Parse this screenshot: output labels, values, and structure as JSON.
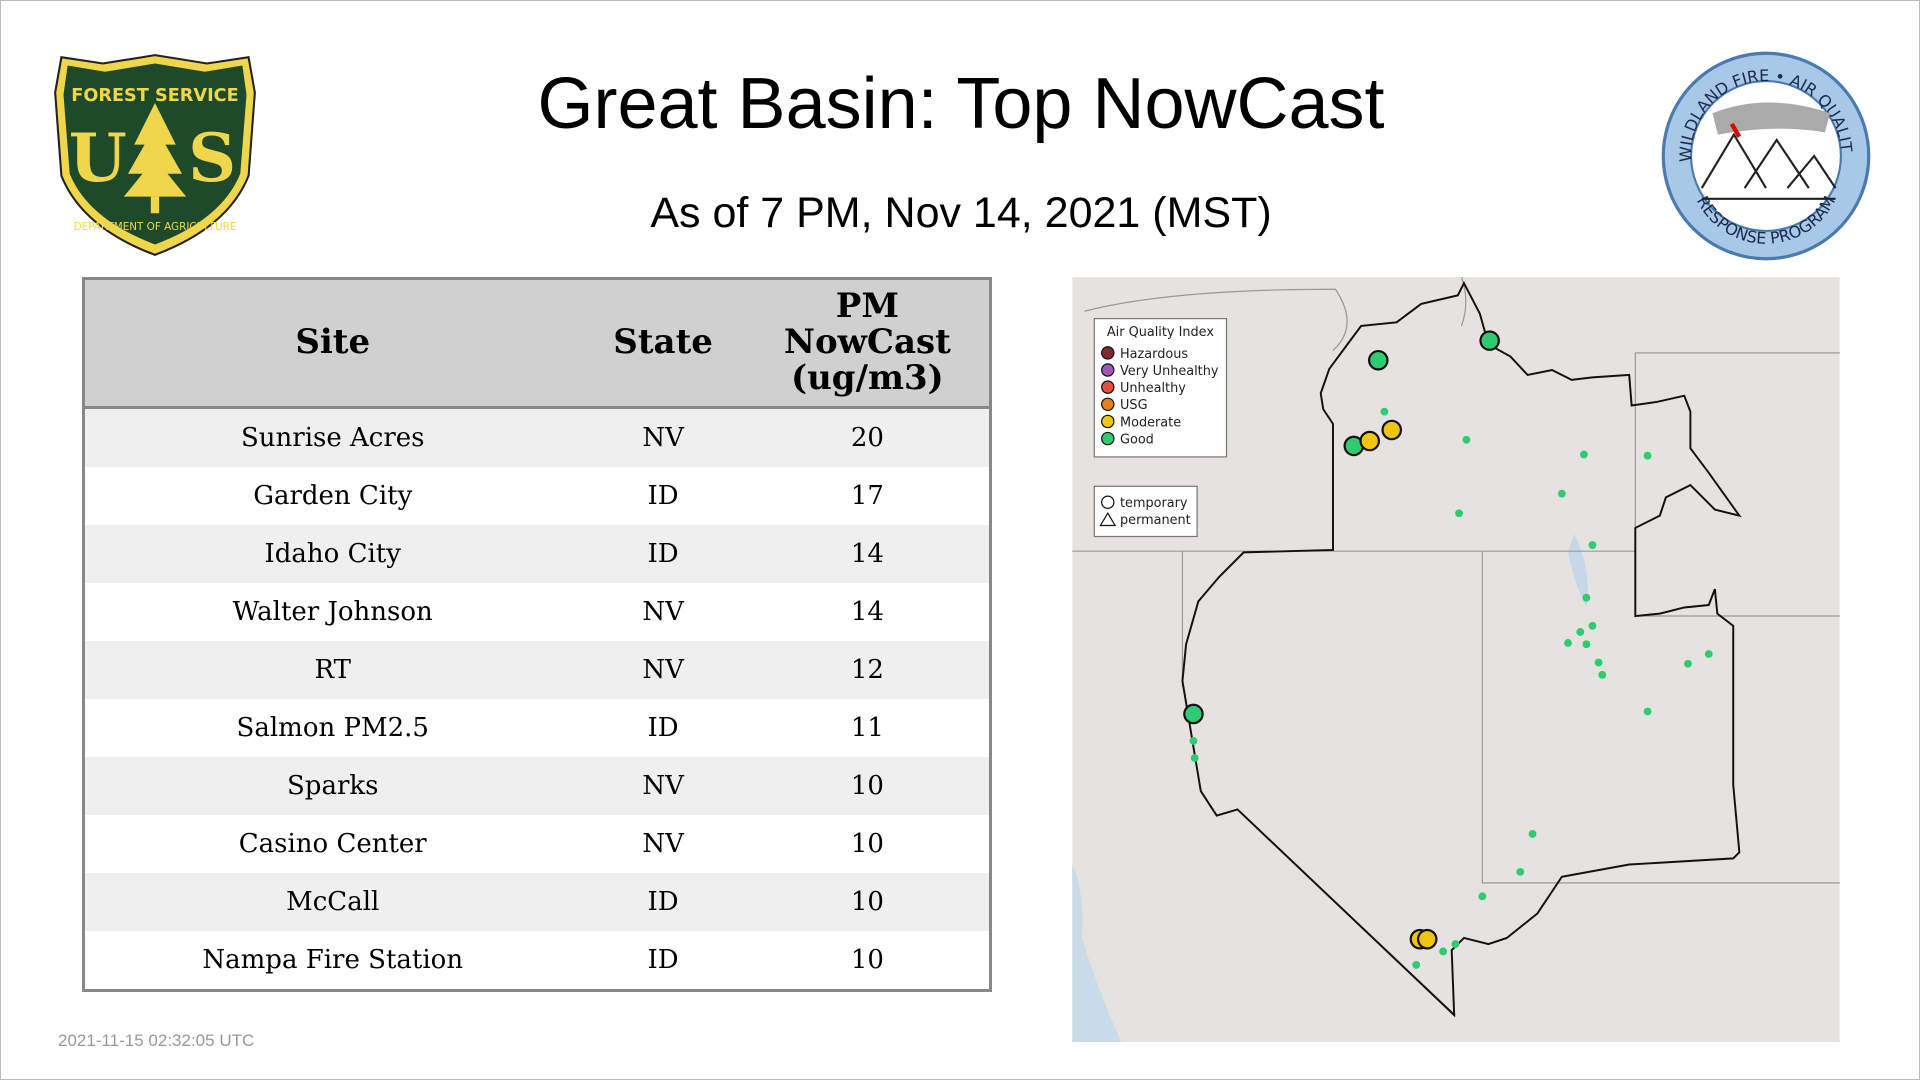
{
  "header": {
    "title": "Great Basin: Top NowCast",
    "subtitle": "As of  7 PM, Nov 14, 2021 (MST)"
  },
  "logos": {
    "left": {
      "text_top": "FOREST SERVICE",
      "letters": "US",
      "text_bottom": "DEPARTMENT OF AGRICULTURE"
    },
    "right": {
      "text_top": "WILDLAND FIRE • AIR QUALITY",
      "text_bottom": "RESPONSE PROGRAM"
    }
  },
  "table": {
    "headers": [
      "Site",
      "State",
      "PM NowCast (ug/m3)"
    ],
    "rows": [
      [
        "Sunrise Acres",
        "NV",
        "20"
      ],
      [
        "Garden City",
        "ID",
        "17"
      ],
      [
        "Idaho City",
        "ID",
        "14"
      ],
      [
        "Walter Johnson",
        "NV",
        "14"
      ],
      [
        "RT",
        "NV",
        "12"
      ],
      [
        "Salmon PM2.5",
        "ID",
        "11"
      ],
      [
        "Sparks",
        "NV",
        "10"
      ],
      [
        "Casino Center",
        "NV",
        "10"
      ],
      [
        "McCall",
        "ID",
        "10"
      ],
      [
        "Nampa Fire Station",
        "ID",
        "10"
      ]
    ]
  },
  "map": {
    "legend": {
      "title": "Air Quality Index",
      "items": [
        {
          "label": "Hazardous",
          "color": "#7e2b2b"
        },
        {
          "label": "Very Unhealthy",
          "color": "#9b59b6"
        },
        {
          "label": "Unhealthy",
          "color": "#e74c3c"
        },
        {
          "label": "USG",
          "color": "#e67e22"
        },
        {
          "label": "Moderate",
          "color": "#f1c40f"
        },
        {
          "label": "Good",
          "color": "#2ecc71"
        }
      ],
      "shapes": [
        "temporary",
        "permanent"
      ]
    }
  },
  "footer": {
    "timestamp": "2021-11-15 02:32:05 UTC"
  }
}
